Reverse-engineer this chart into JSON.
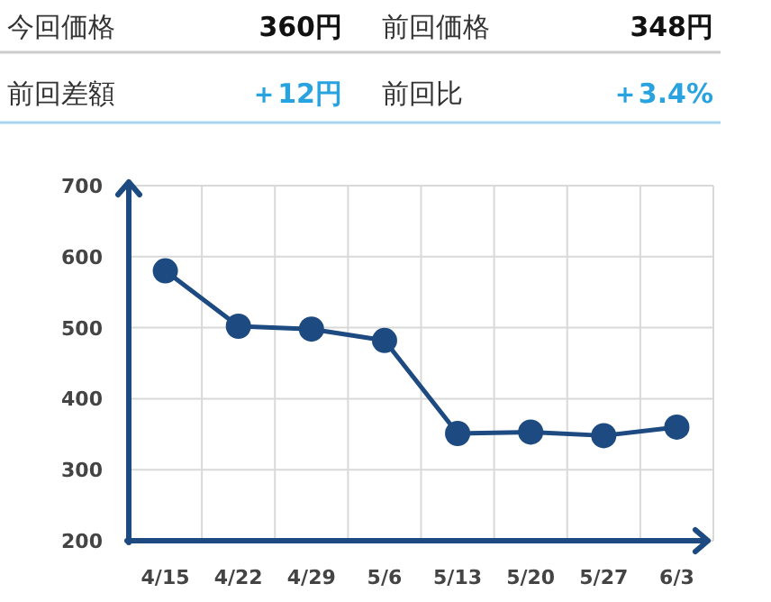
{
  "chart_data": [
    {
      "type": "other",
      "annotations": [
        "今回価格",
        "360円",
        "前回価格",
        "348円",
        "前回差額",
        "＋12円",
        "前回比",
        "＋3.4%"
      ],
      "colors": [
        "#333333",
        "#111111",
        "#333333",
        "#111111",
        "#333333",
        "#29a3e0",
        "#333333",
        "#29a3e0"
      ]
    },
    {
      "type": "line",
      "categories": [
        "4/15",
        "4/22",
        "4/29",
        "5/6",
        "5/13",
        "5/20",
        "5/27",
        "6/3"
      ],
      "series": [
        {
          "color": "#1d4a80",
          "values": [
            580,
            502,
            498,
            482,
            351,
            353,
            348,
            360
          ]
        }
      ],
      "ylim": [
        200,
        700
      ],
      "yticks": [
        200,
        300,
        400,
        500,
        600,
        700
      ],
      "grid": true,
      "marker": "circle",
      "line_style": "solid"
    }
  ]
}
